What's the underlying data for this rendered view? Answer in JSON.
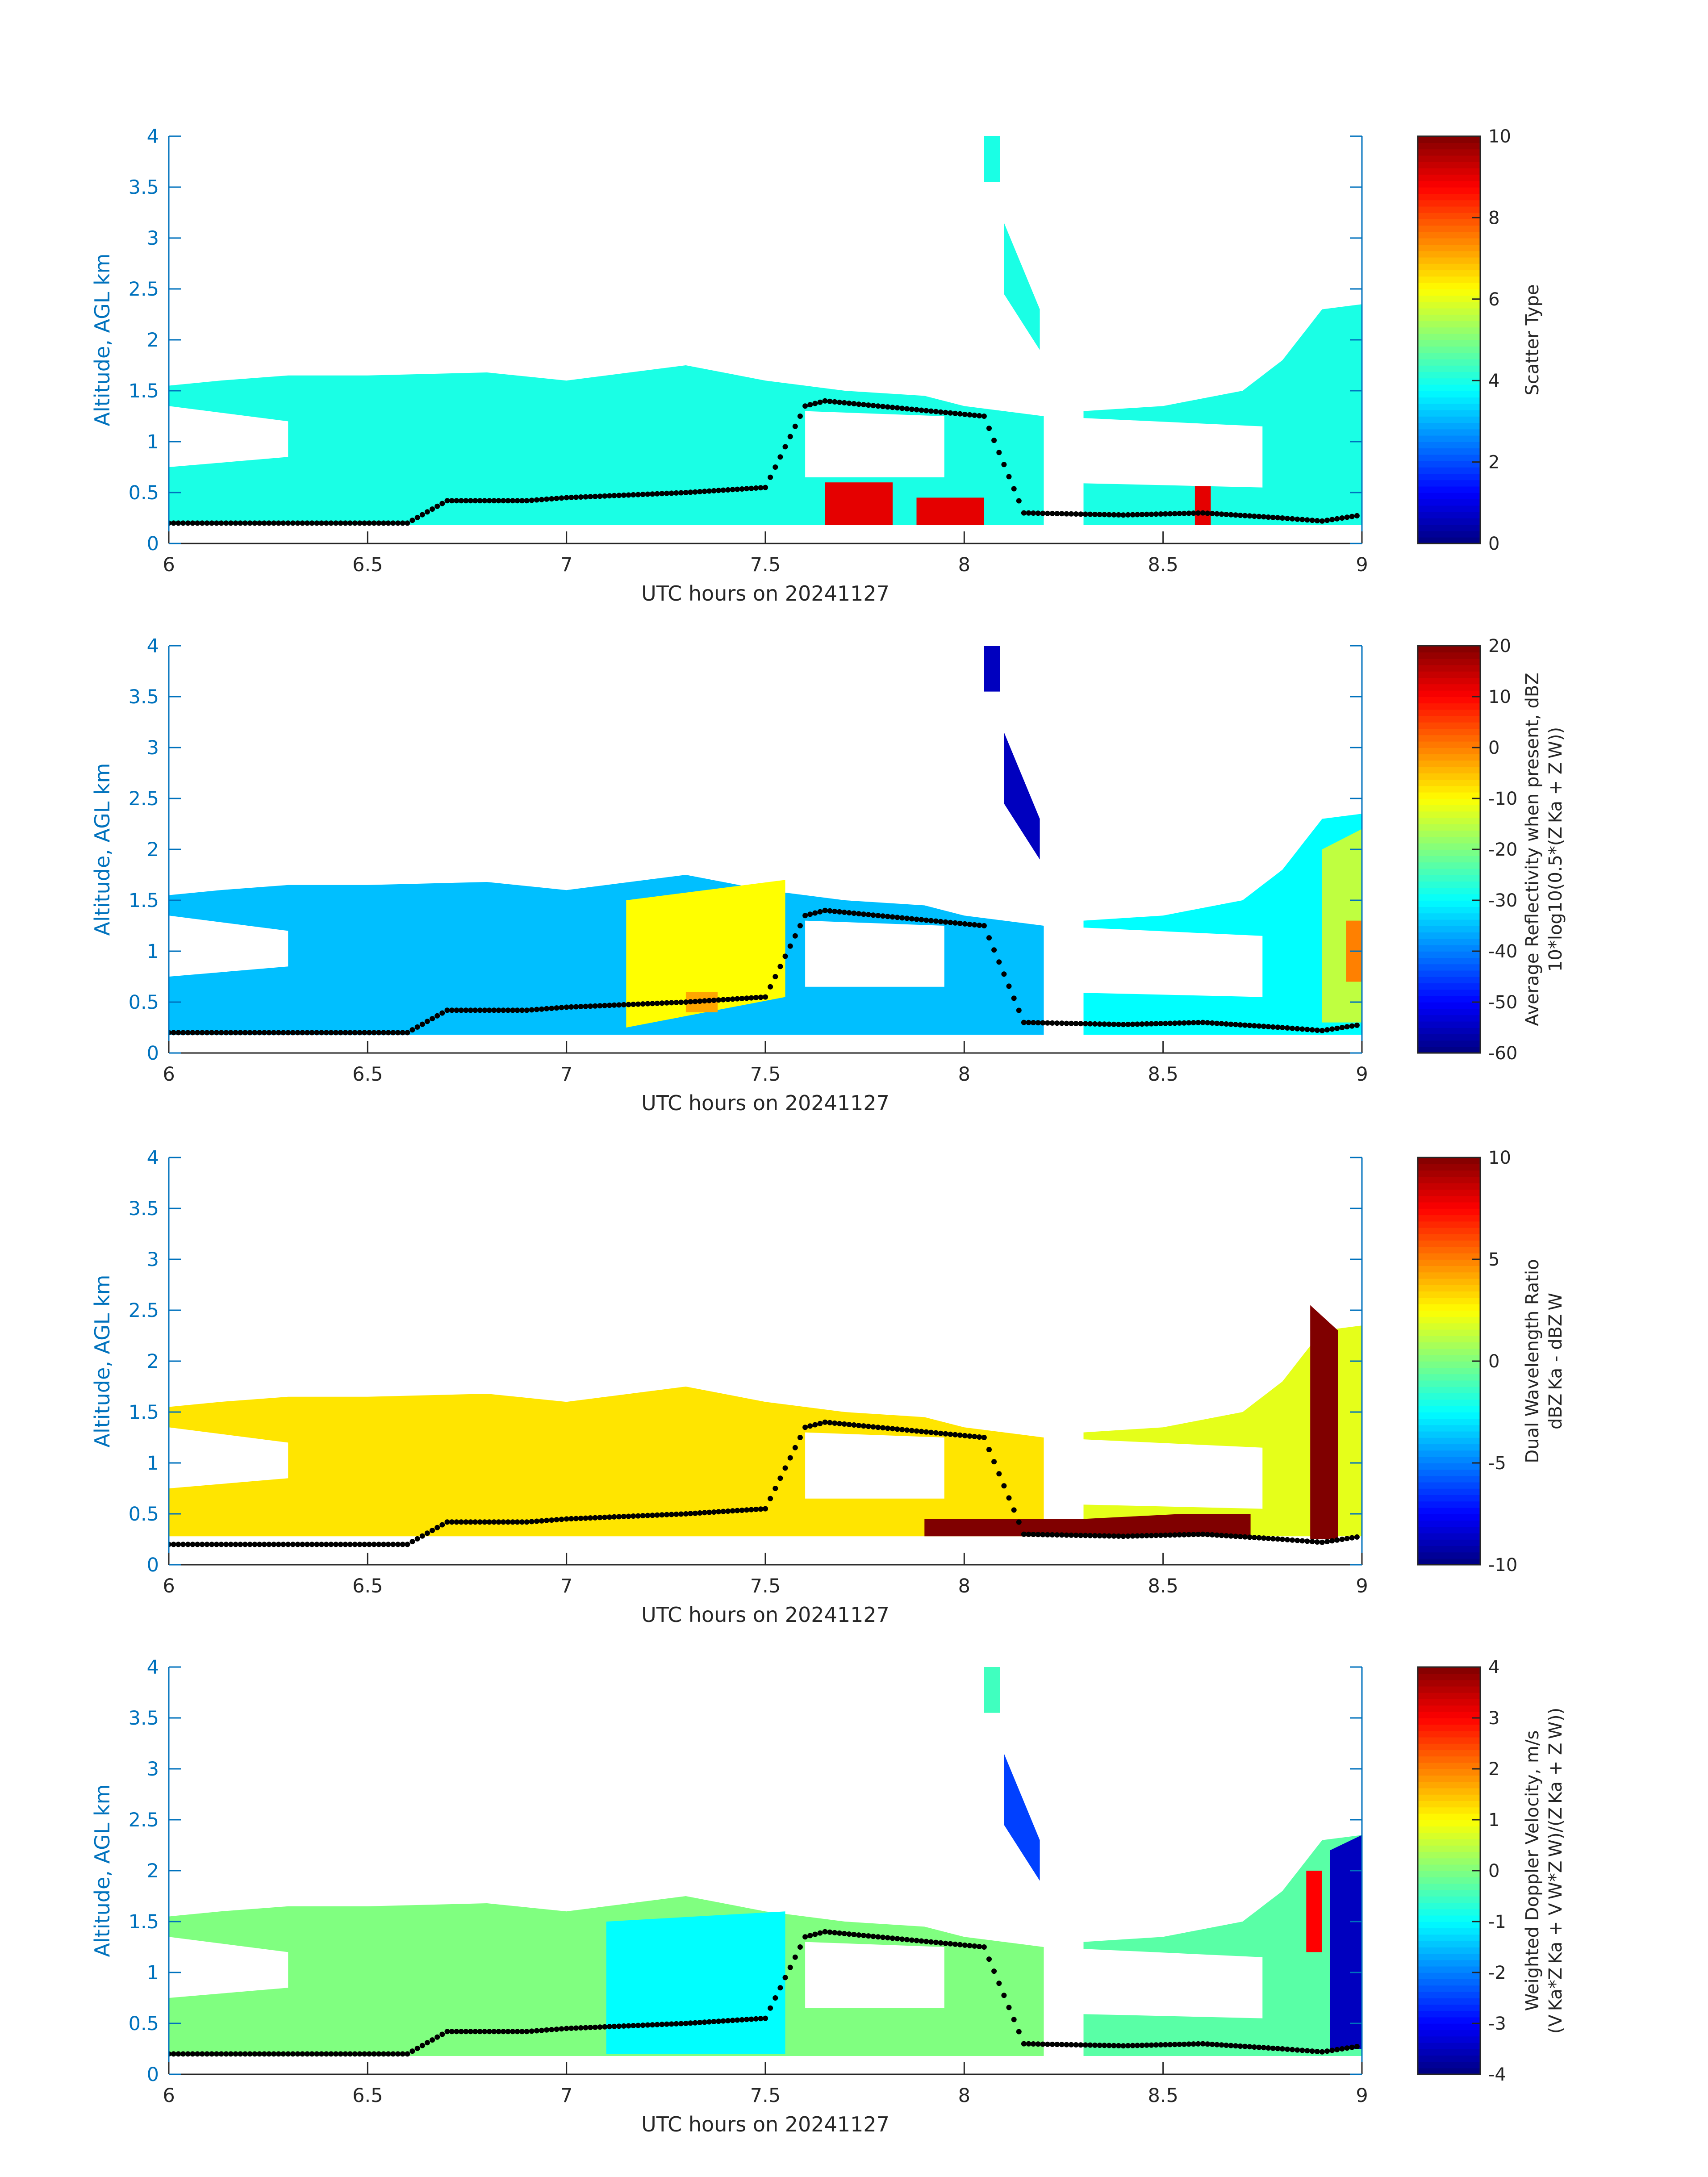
{
  "figure": {
    "xlabel": "UTC hours on 20241127",
    "ylabel": "Altitude, AGL km",
    "xlim": [
      6,
      9
    ],
    "ylim": [
      0,
      4
    ],
    "xticks": [
      "6",
      "6.5",
      "7",
      "7.5",
      "8",
      "8.5",
      "9"
    ],
    "yticks": [
      "0",
      "0.5",
      "1",
      "1.5",
      "2",
      "2.5",
      "3",
      "3.5",
      "4"
    ],
    "axis_label_color": "#0072BD",
    "tick_color": "#0072BD",
    "grid": false
  },
  "chart_data": [
    {
      "type": "heatmap",
      "panel": 1,
      "title": "",
      "xlabel": "UTC hours on 20241127",
      "ylabel": "Altitude, AGL km",
      "xlim": [
        6,
        9
      ],
      "ylim": [
        0,
        4
      ],
      "colormap": "jet",
      "clim": [
        0,
        10
      ],
      "colorbar_label": [
        "Scatter Type"
      ],
      "colorbar_ticks": [
        "0",
        "2",
        "4",
        "6",
        "8",
        "10"
      ],
      "colorbar_tick_values": [
        0,
        2,
        4,
        6,
        8,
        10
      ],
      "regions": [
        {
          "value": 4,
          "x": [
            6.0,
            6.13,
            6.3,
            6.5,
            6.8,
            7.0,
            7.3,
            7.5,
            7.7,
            7.9,
            8.0,
            8.2
          ],
          "top": [
            1.55,
            1.6,
            1.65,
            1.65,
            1.68,
            1.6,
            1.75,
            1.6,
            1.5,
            1.45,
            1.35,
            1.25
          ],
          "bottom": [
            0.18,
            0.18,
            0.18,
            0.18,
            0.18,
            0.18,
            0.18,
            0.18,
            0.18,
            0.18,
            0.18,
            0.18
          ]
        },
        {
          "value": 4,
          "x": [
            8.3,
            8.5,
            8.7,
            8.8,
            8.9,
            9.0
          ],
          "top": [
            1.3,
            1.35,
            1.5,
            1.8,
            2.3,
            2.35
          ],
          "bottom": [
            0.18,
            0.18,
            0.18,
            0.18,
            0.18,
            0.18
          ]
        },
        {
          "value": 4,
          "x": [
            8.05,
            8.09
          ],
          "top": [
            4.0,
            4.0
          ],
          "bottom": [
            3.55,
            3.55
          ]
        },
        {
          "value": 4,
          "x": [
            8.1,
            8.19
          ],
          "top": [
            3.15,
            2.3
          ],
          "bottom": [
            2.45,
            1.9
          ]
        },
        {
          "value": 9,
          "x": [
            7.65,
            7.82
          ],
          "top": [
            0.6,
            0.6
          ],
          "bottom": [
            0.18,
            0.18
          ]
        },
        {
          "value": 9,
          "x": [
            7.88,
            8.05
          ],
          "top": [
            0.45,
            0.45
          ],
          "bottom": [
            0.18,
            0.18
          ]
        },
        {
          "value": 9,
          "x": [
            8.58,
            8.62
          ],
          "top": [
            0.6,
            0.6
          ],
          "bottom": [
            0.18,
            0.18
          ]
        }
      ],
      "gaps": [
        {
          "x": [
            6.0,
            6.3
          ],
          "top": [
            1.35,
            1.2
          ],
          "bottom": [
            0.75,
            0.85
          ]
        },
        {
          "x": [
            7.6,
            7.95
          ],
          "top": [
            1.3,
            1.25
          ],
          "bottom": [
            0.65,
            0.65
          ]
        },
        {
          "x": [
            8.2,
            8.75
          ],
          "top": [
            1.25,
            1.15
          ],
          "bottom": [
            0.6,
            0.55
          ]
        }
      ],
      "dotted_line": {
        "x": [
          6.0,
          6.3,
          6.6,
          6.7,
          6.9,
          7.0,
          7.3,
          7.5,
          7.6,
          7.65,
          8.05,
          8.15,
          8.4,
          8.6,
          8.8,
          8.9,
          9.0
        ],
        "y": [
          0.2,
          0.2,
          0.2,
          0.42,
          0.42,
          0.45,
          0.5,
          0.55,
          1.35,
          1.4,
          1.25,
          0.3,
          0.28,
          0.3,
          0.25,
          0.22,
          0.28
        ]
      }
    },
    {
      "type": "heatmap",
      "panel": 2,
      "title": "",
      "xlabel": "UTC hours on 20241127",
      "ylabel": "Altitude, AGL km",
      "xlim": [
        6,
        9
      ],
      "ylim": [
        0,
        4
      ],
      "colormap": "jet",
      "clim": [
        -60,
        20
      ],
      "colorbar_label": [
        "Average Reflectivity when present, dBZ",
        "10*log10(0.5*(Z Ka + Z W))"
      ],
      "colorbar_ticks": [
        "20",
        "10",
        "0",
        "-10",
        "-20",
        "-30",
        "-40",
        "-50",
        "-60"
      ],
      "colorbar_tick_values": [
        20,
        10,
        0,
        -10,
        -20,
        -30,
        -40,
        -50,
        -60
      ],
      "regions": [
        {
          "value": -35,
          "x": [
            6.0,
            6.13,
            6.3,
            6.5,
            6.8,
            7.0,
            7.3,
            7.5,
            7.7,
            7.9,
            8.0,
            8.2
          ],
          "top": [
            1.55,
            1.6,
            1.65,
            1.65,
            1.68,
            1.6,
            1.75,
            1.6,
            1.5,
            1.45,
            1.35,
            1.25
          ],
          "bottom": [
            0.18,
            0.18,
            0.18,
            0.18,
            0.18,
            0.18,
            0.18,
            0.18,
            0.18,
            0.18,
            0.18,
            0.18
          ]
        },
        {
          "value": -30,
          "x": [
            8.3,
            8.5,
            8.7,
            8.8,
            8.9,
            9.0
          ],
          "top": [
            1.3,
            1.35,
            1.5,
            1.8,
            2.3,
            2.35
          ],
          "bottom": [
            0.18,
            0.18,
            0.18,
            0.18,
            0.18,
            0.18
          ]
        },
        {
          "value": -55,
          "x": [
            8.05,
            8.09
          ],
          "top": [
            4.0,
            4.0
          ],
          "bottom": [
            3.55,
            3.55
          ]
        },
        {
          "value": -55,
          "x": [
            8.1,
            8.19
          ],
          "top": [
            3.15,
            2.3
          ],
          "bottom": [
            2.45,
            1.9
          ]
        },
        {
          "value": -10,
          "x": [
            7.15,
            7.55
          ],
          "top": [
            1.5,
            1.7
          ],
          "bottom": [
            0.25,
            0.55
          ]
        },
        {
          "value": -3,
          "x": [
            7.3,
            7.38
          ],
          "top": [
            0.6,
            0.6
          ],
          "bottom": [
            0.4,
            0.4
          ]
        },
        {
          "value": -15,
          "x": [
            8.9,
            9.0
          ],
          "top": [
            2.0,
            2.2
          ],
          "bottom": [
            0.3,
            0.3
          ]
        },
        {
          "value": 0,
          "x": [
            8.96,
            9.0
          ],
          "top": [
            1.3,
            1.3
          ],
          "bottom": [
            0.7,
            0.7
          ]
        }
      ],
      "gaps": [
        {
          "x": [
            6.0,
            6.3
          ],
          "top": [
            1.35,
            1.2
          ],
          "bottom": [
            0.75,
            0.85
          ]
        },
        {
          "x": [
            7.6,
            7.95
          ],
          "top": [
            1.3,
            1.25
          ],
          "bottom": [
            0.65,
            0.65
          ]
        },
        {
          "x": [
            8.2,
            8.75
          ],
          "top": [
            1.25,
            1.15
          ],
          "bottom": [
            0.6,
            0.55
          ]
        }
      ],
      "dotted_line": {
        "x": [
          6.0,
          6.3,
          6.6,
          6.7,
          6.9,
          7.0,
          7.3,
          7.5,
          7.6,
          7.65,
          8.05,
          8.15,
          8.4,
          8.6,
          8.8,
          8.9,
          9.0
        ],
        "y": [
          0.2,
          0.2,
          0.2,
          0.42,
          0.42,
          0.45,
          0.5,
          0.55,
          1.35,
          1.4,
          1.25,
          0.3,
          0.28,
          0.3,
          0.25,
          0.22,
          0.28
        ]
      }
    },
    {
      "type": "heatmap",
      "panel": 3,
      "title": "",
      "xlabel": "UTC hours on 20241127",
      "ylabel": "Altitude, AGL km",
      "xlim": [
        6,
        9
      ],
      "ylim": [
        0,
        4
      ],
      "colormap": "jet",
      "clim": [
        -10,
        10
      ],
      "colorbar_label": [
        "Dual Wavelength Ratio",
        "dBZ Ka - dBZ W"
      ],
      "colorbar_ticks": [
        "10",
        "5",
        "0",
        "-5",
        "-10"
      ],
      "colorbar_tick_values": [
        10,
        5,
        0,
        -5,
        -10
      ],
      "regions": [
        {
          "value": 3,
          "x": [
            6.0,
            6.13,
            6.3,
            6.5,
            6.8,
            7.0,
            7.3,
            7.5,
            7.7,
            7.9,
            8.0,
            8.2
          ],
          "top": [
            1.55,
            1.6,
            1.65,
            1.65,
            1.68,
            1.6,
            1.75,
            1.6,
            1.5,
            1.45,
            1.35,
            1.25
          ],
          "bottom": [
            0.28,
            0.28,
            0.28,
            0.28,
            0.28,
            0.28,
            0.28,
            0.28,
            0.28,
            0.28,
            0.28,
            0.28
          ]
        },
        {
          "value": 2,
          "x": [
            8.3,
            8.5,
            8.7,
            8.8,
            8.9,
            9.0
          ],
          "top": [
            1.3,
            1.35,
            1.5,
            1.8,
            2.3,
            2.35
          ],
          "bottom": [
            0.28,
            0.28,
            0.28,
            0.28,
            0.28,
            0.28
          ]
        },
        {
          "value": 10,
          "x": [
            7.9,
            8.05,
            8.3,
            8.55,
            8.72
          ],
          "top": [
            0.45,
            0.45,
            0.45,
            0.5,
            0.5
          ],
          "bottom": [
            0.28,
            0.28,
            0.28,
            0.28,
            0.28
          ]
        },
        {
          "value": 10,
          "x": [
            8.87,
            8.94
          ],
          "top": [
            2.55,
            2.3
          ],
          "bottom": [
            0.25,
            0.25
          ]
        }
      ],
      "gaps": [
        {
          "x": [
            6.0,
            6.3
          ],
          "top": [
            1.35,
            1.2
          ],
          "bottom": [
            0.75,
            0.85
          ]
        },
        {
          "x": [
            7.6,
            7.95
          ],
          "top": [
            1.3,
            1.25
          ],
          "bottom": [
            0.65,
            0.65
          ]
        },
        {
          "x": [
            8.2,
            8.75
          ],
          "top": [
            1.25,
            1.15
          ],
          "bottom": [
            0.6,
            0.55
          ]
        }
      ],
      "dotted_line": {
        "x": [
          6.0,
          6.3,
          6.6,
          6.7,
          6.9,
          7.0,
          7.3,
          7.5,
          7.6,
          7.65,
          8.05,
          8.15,
          8.4,
          8.6,
          8.8,
          8.9,
          9.0
        ],
        "y": [
          0.2,
          0.2,
          0.2,
          0.42,
          0.42,
          0.45,
          0.5,
          0.55,
          1.35,
          1.4,
          1.25,
          0.3,
          0.28,
          0.3,
          0.25,
          0.22,
          0.28
        ]
      }
    },
    {
      "type": "heatmap",
      "panel": 4,
      "title": "",
      "xlabel": "UTC hours on 20241127",
      "ylabel": "Altitude, AGL km",
      "xlim": [
        6,
        9
      ],
      "ylim": [
        0,
        4
      ],
      "colormap": "jet",
      "clim": [
        -4,
        4
      ],
      "colorbar_label": [
        "Weighted Doppler Velocity, m/s",
        "(V Ka*Z Ka + V W*Z W)/(Z Ka + Z W))"
      ],
      "colorbar_ticks": [
        "4",
        "3",
        "2",
        "1",
        "0",
        "-1",
        "-2",
        "-3",
        "-4"
      ],
      "colorbar_tick_values": [
        4,
        3,
        2,
        1,
        0,
        -1,
        -2,
        -3,
        -4
      ],
      "regions": [
        {
          "value": 0,
          "x": [
            6.0,
            6.13,
            6.3,
            6.5,
            6.8,
            7.0,
            7.3,
            7.5,
            7.7,
            7.9,
            8.0,
            8.2
          ],
          "top": [
            1.55,
            1.6,
            1.65,
            1.65,
            1.68,
            1.6,
            1.75,
            1.6,
            1.5,
            1.45,
            1.35,
            1.25
          ],
          "bottom": [
            0.18,
            0.18,
            0.18,
            0.18,
            0.18,
            0.18,
            0.18,
            0.18,
            0.18,
            0.18,
            0.18,
            0.18
          ]
        },
        {
          "value": -0.3,
          "x": [
            8.3,
            8.5,
            8.7,
            8.8,
            8.9,
            9.0
          ],
          "top": [
            1.3,
            1.35,
            1.5,
            1.8,
            2.3,
            2.35
          ],
          "bottom": [
            0.18,
            0.18,
            0.18,
            0.18,
            0.18,
            0.18
          ]
        },
        {
          "value": -1,
          "x": [
            7.1,
            7.55
          ],
          "top": [
            1.5,
            1.6
          ],
          "bottom": [
            0.2,
            0.2
          ]
        },
        {
          "value": -0.5,
          "x": [
            8.05,
            8.09
          ],
          "top": [
            4.0,
            4.0
          ],
          "bottom": [
            3.55,
            3.55
          ]
        },
        {
          "value": -2.5,
          "x": [
            8.1,
            8.19
          ],
          "top": [
            3.15,
            2.3
          ],
          "bottom": [
            2.45,
            1.9
          ]
        },
        {
          "value": -3.5,
          "x": [
            8.92,
            9.0
          ],
          "top": [
            2.2,
            2.35
          ],
          "bottom": [
            0.25,
            0.25
          ]
        },
        {
          "value": 3,
          "x": [
            8.86,
            8.9
          ],
          "top": [
            2.0,
            2.0
          ],
          "bottom": [
            1.2,
            1.2
          ]
        }
      ],
      "gaps": [
        {
          "x": [
            6.0,
            6.3
          ],
          "top": [
            1.35,
            1.2
          ],
          "bottom": [
            0.75,
            0.85
          ]
        },
        {
          "x": [
            7.6,
            7.95
          ],
          "top": [
            1.3,
            1.25
          ],
          "bottom": [
            0.65,
            0.65
          ]
        },
        {
          "x": [
            8.2,
            8.75
          ],
          "top": [
            1.25,
            1.15
          ],
          "bottom": [
            0.6,
            0.55
          ]
        }
      ],
      "dotted_line": {
        "x": [
          6.0,
          6.3,
          6.6,
          6.7,
          6.9,
          7.0,
          7.3,
          7.5,
          7.6,
          7.65,
          8.05,
          8.15,
          8.4,
          8.6,
          8.8,
          8.9,
          9.0
        ],
        "y": [
          0.2,
          0.2,
          0.2,
          0.42,
          0.42,
          0.45,
          0.5,
          0.55,
          1.35,
          1.4,
          1.25,
          0.3,
          0.28,
          0.3,
          0.25,
          0.22,
          0.28
        ]
      }
    }
  ]
}
